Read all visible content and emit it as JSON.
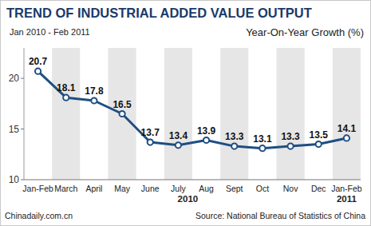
{
  "chart_data": {
    "type": "line",
    "title": "TREND OF INDUSTRIAL ADDED VALUE OUTPUT",
    "subtitle": "Jan 2010 - Feb 2011",
    "y_label": "Year-On-Year Growth (%)",
    "categories": [
      "Jan-Feb",
      "March",
      "April",
      "May",
      "June",
      "July",
      "Aug",
      "Sept",
      "Oct",
      "Nov",
      "Dec",
      "Jan-Feb"
    ],
    "values": [
      20.7,
      18.1,
      17.8,
      16.5,
      13.7,
      13.4,
      13.9,
      13.3,
      13.1,
      13.3,
      13.5,
      14.1
    ],
    "color": "#1f4e82",
    "marker": "circle",
    "ylim": [
      10,
      23
    ],
    "yticks": [
      10,
      15,
      20
    ],
    "grid": false,
    "data_labels": true,
    "annotations": [
      "2010",
      "2011"
    ],
    "credit": "Chinadaily.com.cn",
    "source": "Source: National Bureau of Statistics of China"
  }
}
